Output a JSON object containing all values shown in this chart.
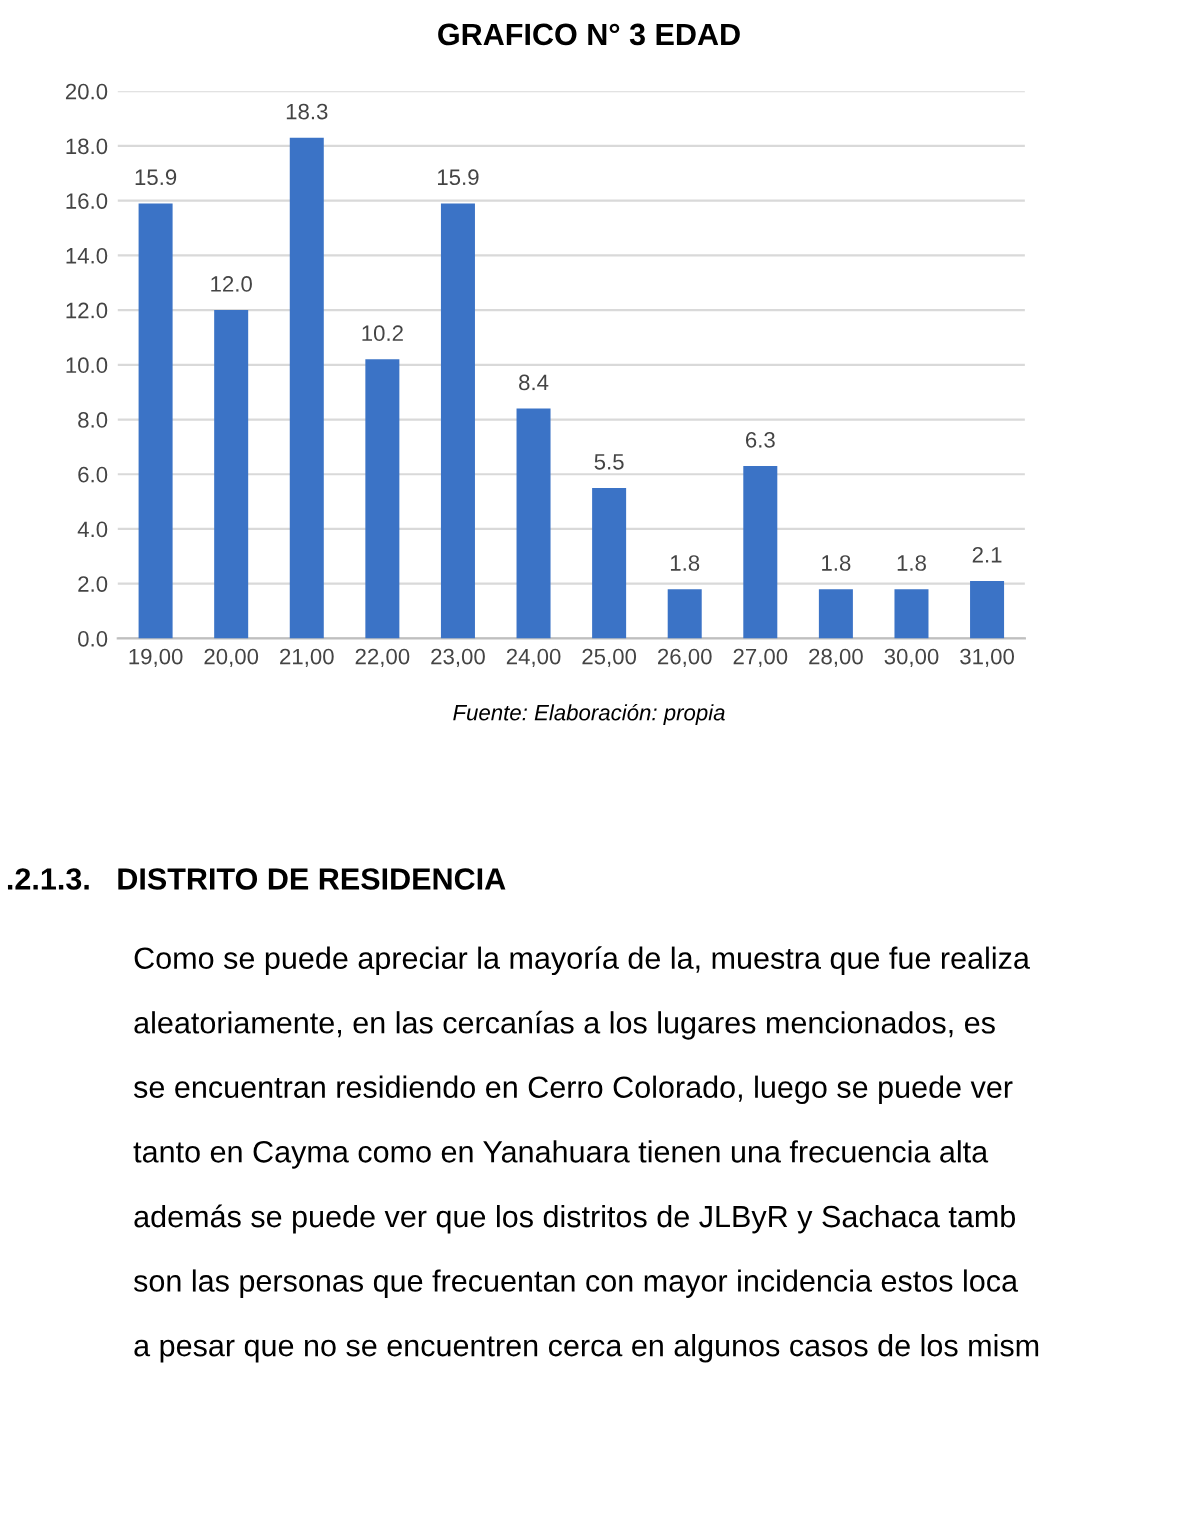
{
  "chart_data": {
    "type": "bar",
    "title": "GRAFICO N° 3 EDAD",
    "categories": [
      "19,00",
      "20,00",
      "21,00",
      "22,00",
      "23,00",
      "24,00",
      "25,00",
      "26,00",
      "27,00",
      "28,00",
      "30,00",
      "31,00"
    ],
    "values": [
      15.9,
      12.0,
      18.3,
      10.2,
      15.9,
      8.4,
      5.5,
      1.8,
      6.3,
      1.8,
      1.8,
      2.1
    ],
    "color": "#3b73c6",
    "value_labels": [
      "15.9",
      "12.0",
      "18.3",
      "10.2",
      "15.9",
      "8.4",
      "5.5",
      "1.8",
      "6.3",
      "1.8",
      "1.8",
      "2.1"
    ],
    "grid": "y",
    "ylim": [
      0,
      20
    ],
    "yticks": [
      {
        "value": 0,
        "label": "0.0"
      },
      {
        "value": 2,
        "label": "2.0"
      },
      {
        "value": 4,
        "label": "4.0"
      },
      {
        "value": 6,
        "label": "6.0"
      },
      {
        "value": 8,
        "label": "8.0"
      },
      {
        "value": 10,
        "label": "10.0"
      },
      {
        "value": 12,
        "label": "12.0"
      },
      {
        "value": 14,
        "label": "14.0"
      },
      {
        "value": 16,
        "label": "16.0"
      },
      {
        "value": 18,
        "label": "18.0"
      },
      {
        "value": 20,
        "label": "20.0"
      }
    ],
    "annotations": [
      "Fuente: Elaboración: propia",
      ".2.1.3.   DISTRITO DE RESIDENCIA",
      "Como se puede apreciar la mayoría de la, muestra que fue realiza",
      "aleatoriamente, en las cercanías a los lugares mencionados, es",
      "se encuentran residiendo en Cerro Colorado, luego se puede ver",
      "tanto en Cayma como en Yanahuara tienen una frecuencia alta",
      "además se puede ver que los distritos de JLByR y Sachaca tamb",
      "son las personas que frecuentan con mayor incidencia estos loca",
      "a pesar que no se encuentren cerca en algunos casos de los mism"
    ]
  }
}
